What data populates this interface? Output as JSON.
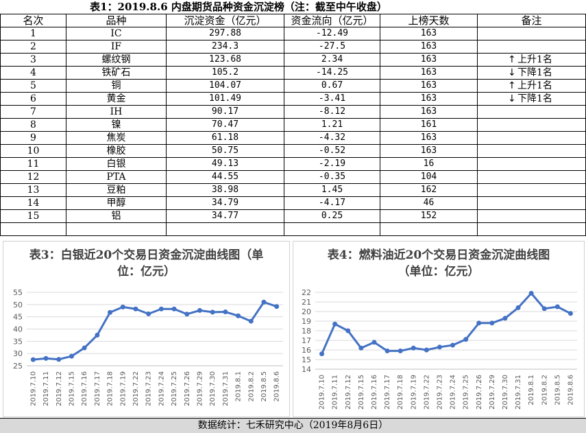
{
  "table": {
    "title": "表1：2019.8.6 内盘期货品种资金沉淀榜（注：截至中午收盘）",
    "headers": [
      "名次",
      "品种",
      "沉淀资金（亿元）",
      "资金流向（亿元）",
      "上榜天数",
      "备注"
    ],
    "rows": [
      {
        "rank": "1",
        "name": "IC",
        "amount": "297.88",
        "flow": "-12.49",
        "days": "163",
        "note": "",
        "arrow": ""
      },
      {
        "rank": "2",
        "name": "IF",
        "amount": "234.3",
        "flow": "-27.5",
        "days": "163",
        "note": "",
        "arrow": ""
      },
      {
        "rank": "3",
        "name": "螺纹钢",
        "amount": "123.68",
        "flow": "2.34",
        "days": "163",
        "note": "上升1名",
        "arrow": "↑"
      },
      {
        "rank": "4",
        "name": "铁矿石",
        "amount": "105.2",
        "flow": "-14.25",
        "days": "163",
        "note": "下降1名",
        "arrow": "↓"
      },
      {
        "rank": "5",
        "name": "铜",
        "amount": "104.07",
        "flow": "0.67",
        "days": "163",
        "note": "上升1名",
        "arrow": "↑"
      },
      {
        "rank": "6",
        "name": "黄金",
        "amount": "101.49",
        "flow": "-3.41",
        "days": "163",
        "note": "下降1名",
        "arrow": "↓"
      },
      {
        "rank": "7",
        "name": "IH",
        "amount": "90.17",
        "flow": "-8.12",
        "days": "163",
        "note": "",
        "arrow": ""
      },
      {
        "rank": "8",
        "name": "镍",
        "amount": "70.47",
        "flow": "1.21",
        "days": "161",
        "note": "",
        "arrow": ""
      },
      {
        "rank": "9",
        "name": "焦炭",
        "amount": "61.18",
        "flow": "-4.32",
        "days": "163",
        "note": "",
        "arrow": ""
      },
      {
        "rank": "10",
        "name": "橡胶",
        "amount": "50.75",
        "flow": "-0.52",
        "days": "163",
        "note": "",
        "arrow": ""
      },
      {
        "rank": "11",
        "name": "白银",
        "amount": "49.13",
        "flow": "-2.19",
        "days": "16",
        "note": "",
        "arrow": ""
      },
      {
        "rank": "12",
        "name": "PTA",
        "amount": "44.55",
        "flow": "-0.35",
        "days": "104",
        "note": "",
        "arrow": ""
      },
      {
        "rank": "13",
        "name": "豆粕",
        "amount": "38.98",
        "flow": "1.45",
        "days": "162",
        "note": "",
        "arrow": ""
      },
      {
        "rank": "14",
        "name": "甲醇",
        "amount": "34.79",
        "flow": "-4.17",
        "days": "46",
        "note": "",
        "arrow": ""
      },
      {
        "rank": "15",
        "name": "铝",
        "amount": "34.77",
        "flow": "0.25",
        "days": "152",
        "note": "",
        "arrow": ""
      }
    ]
  },
  "chart_data": [
    {
      "type": "line",
      "title_line1": "表3：白银近20个交易日资金沉淀曲线图（单",
      "title_line2": "位：亿元）",
      "categories": [
        "2019.7.10",
        "2019.7.11",
        "2019.7.12",
        "2019.7.15",
        "2019.7.16",
        "2019.7.17",
        "2019.7.18",
        "2019.7.19",
        "2019.7.22",
        "2019.7.23",
        "2019.7.24",
        "2019.7.25",
        "2019.7.26",
        "2019.7.29",
        "2019.7.30",
        "2019.7.31",
        "2019.8.1",
        "2019.8.2",
        "2019.8.5",
        "2019.8.6"
      ],
      "values": [
        27.5,
        28.0,
        27.6,
        28.9,
        32.3,
        37.5,
        46.8,
        49.0,
        48.2,
        46.2,
        48.2,
        48.2,
        46.1,
        47.6,
        46.9,
        47.0,
        45.4,
        43.2,
        51.0,
        49.2
      ],
      "ylim": [
        25,
        55
      ],
      "yticks": [
        "25",
        "30",
        "35",
        "40",
        "45",
        "50",
        "55"
      ],
      "grid": true,
      "color": "#4472C4"
    },
    {
      "type": "line",
      "title_line1": "表4：燃料油近20个交易日资金沉淀曲线图",
      "title_line2": "（单位：亿元）",
      "categories": [
        "2019.7.10",
        "2019.7.11",
        "2019.7.12",
        "2019.7.15",
        "2019.7.16",
        "2019.7.17",
        "2019.7.18",
        "2019.7.19",
        "2019.7.22",
        "2019.7.23",
        "2019.7.24",
        "2019.7.25",
        "2019.7.26",
        "2019.7.29",
        "2019.7.30",
        "2019.7.31",
        "2019.8.1",
        "2019.8.2",
        "2019.8.5",
        "2019.8.6"
      ],
      "values": [
        15.6,
        18.7,
        18.0,
        16.2,
        16.8,
        15.9,
        15.9,
        16.2,
        16.0,
        16.3,
        16.5,
        17.1,
        18.8,
        18.8,
        19.3,
        20.4,
        21.9,
        20.3,
        20.5,
        19.8
      ],
      "ylim": [
        14,
        22
      ],
      "yticks": [
        "14",
        "15",
        "16",
        "17",
        "18",
        "19",
        "20",
        "21",
        "22"
      ],
      "grid": true,
      "color": "#4472C4"
    }
  ],
  "footer": "数据统计：七禾研究中心（2019年8月6日）"
}
